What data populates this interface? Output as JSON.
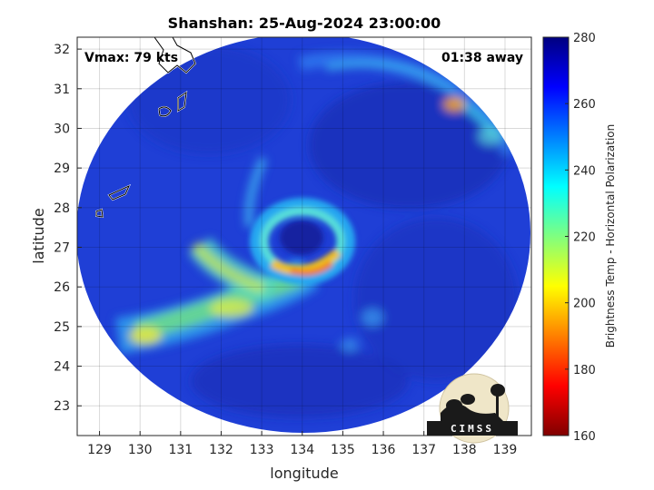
{
  "chart_data": {
    "type": "heatmap",
    "title": "Shanshan: 25-Aug-2024 23:00:00",
    "xlabel": "longitude",
    "ylabel": "latitude",
    "xlim": [
      128.45,
      139.65
    ],
    "ylim": [
      22.25,
      32.3
    ],
    "xticks": [
      129,
      130,
      131,
      132,
      133,
      134,
      135,
      136,
      137,
      138,
      139
    ],
    "yticks": [
      23,
      24,
      25,
      26,
      27,
      28,
      29,
      30,
      31,
      32
    ],
    "grid": true,
    "annotations": {
      "vmax": "Vmax: 79 kts",
      "time_away": "01:38 away"
    },
    "storm_center": {
      "lon": 133.9,
      "lat": 27.0
    },
    "colorbar": {
      "label": "Brightness Temp - Horizontal Polarization",
      "range": [
        160,
        280
      ],
      "ticks": [
        160,
        180,
        200,
        220,
        240,
        260,
        280
      ],
      "colormap": "jet"
    }
  },
  "logo": {
    "text": "CIMSS"
  }
}
